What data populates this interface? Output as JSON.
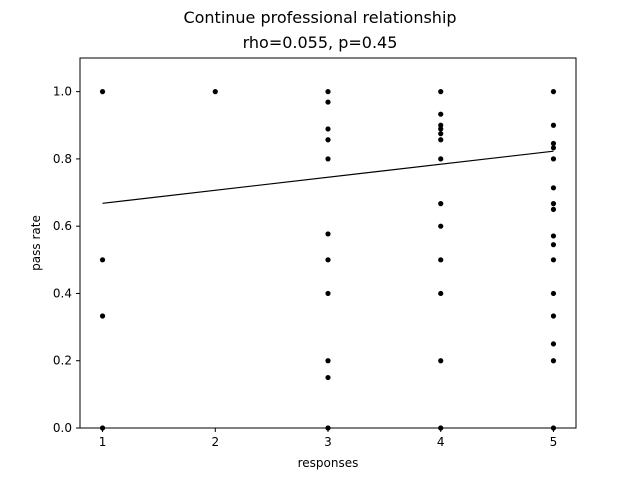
{
  "chart_data": {
    "type": "scatter",
    "title": "Continue professional relationship",
    "subtitle": "rho=0.055, p=0.45",
    "xlabel": "responses",
    "ylabel": "pass rate",
    "xlim": [
      0.8,
      5.2
    ],
    "ylim": [
      0.0,
      1.1
    ],
    "xticks": [
      "1",
      "2",
      "3",
      "4",
      "5"
    ],
    "yticks": [
      "0.0",
      "0.2",
      "0.4",
      "0.6",
      "0.8",
      "1.0"
    ],
    "grid": false,
    "marker_color": "#000000",
    "trend_line": {
      "x": [
        1,
        5
      ],
      "y": [
        0.668,
        0.823
      ]
    },
    "points": [
      {
        "x": 1,
        "y": 1.0
      },
      {
        "x": 1,
        "y": 0.5
      },
      {
        "x": 1,
        "y": 0.333
      },
      {
        "x": 1,
        "y": 0.0
      },
      {
        "x": 2,
        "y": 1.0
      },
      {
        "x": 3,
        "y": 1.0
      },
      {
        "x": 3,
        "y": 0.969
      },
      {
        "x": 3,
        "y": 0.889
      },
      {
        "x": 3,
        "y": 0.857
      },
      {
        "x": 3,
        "y": 0.8
      },
      {
        "x": 3,
        "y": 0.577
      },
      {
        "x": 3,
        "y": 0.5
      },
      {
        "x": 3,
        "y": 0.4
      },
      {
        "x": 3,
        "y": 0.2
      },
      {
        "x": 3,
        "y": 0.15
      },
      {
        "x": 3,
        "y": 0.0
      },
      {
        "x": 4,
        "y": 1.0
      },
      {
        "x": 4,
        "y": 0.933
      },
      {
        "x": 4,
        "y": 0.9
      },
      {
        "x": 4,
        "y": 0.889
      },
      {
        "x": 4,
        "y": 0.875
      },
      {
        "x": 4,
        "y": 0.857
      },
      {
        "x": 4,
        "y": 0.8
      },
      {
        "x": 4,
        "y": 0.667
      },
      {
        "x": 4,
        "y": 0.6
      },
      {
        "x": 4,
        "y": 0.5
      },
      {
        "x": 4,
        "y": 0.4
      },
      {
        "x": 4,
        "y": 0.2
      },
      {
        "x": 4,
        "y": 0.0
      },
      {
        "x": 5,
        "y": 1.0
      },
      {
        "x": 5,
        "y": 0.9
      },
      {
        "x": 5,
        "y": 0.846
      },
      {
        "x": 5,
        "y": 0.833
      },
      {
        "x": 5,
        "y": 0.8
      },
      {
        "x": 5,
        "y": 0.714
      },
      {
        "x": 5,
        "y": 0.667
      },
      {
        "x": 5,
        "y": 0.65
      },
      {
        "x": 5,
        "y": 0.571
      },
      {
        "x": 5,
        "y": 0.545
      },
      {
        "x": 5,
        "y": 0.5
      },
      {
        "x": 5,
        "y": 0.4
      },
      {
        "x": 5,
        "y": 0.333
      },
      {
        "x": 5,
        "y": 0.25
      },
      {
        "x": 5,
        "y": 0.2
      },
      {
        "x": 5,
        "y": 0.0
      }
    ]
  }
}
